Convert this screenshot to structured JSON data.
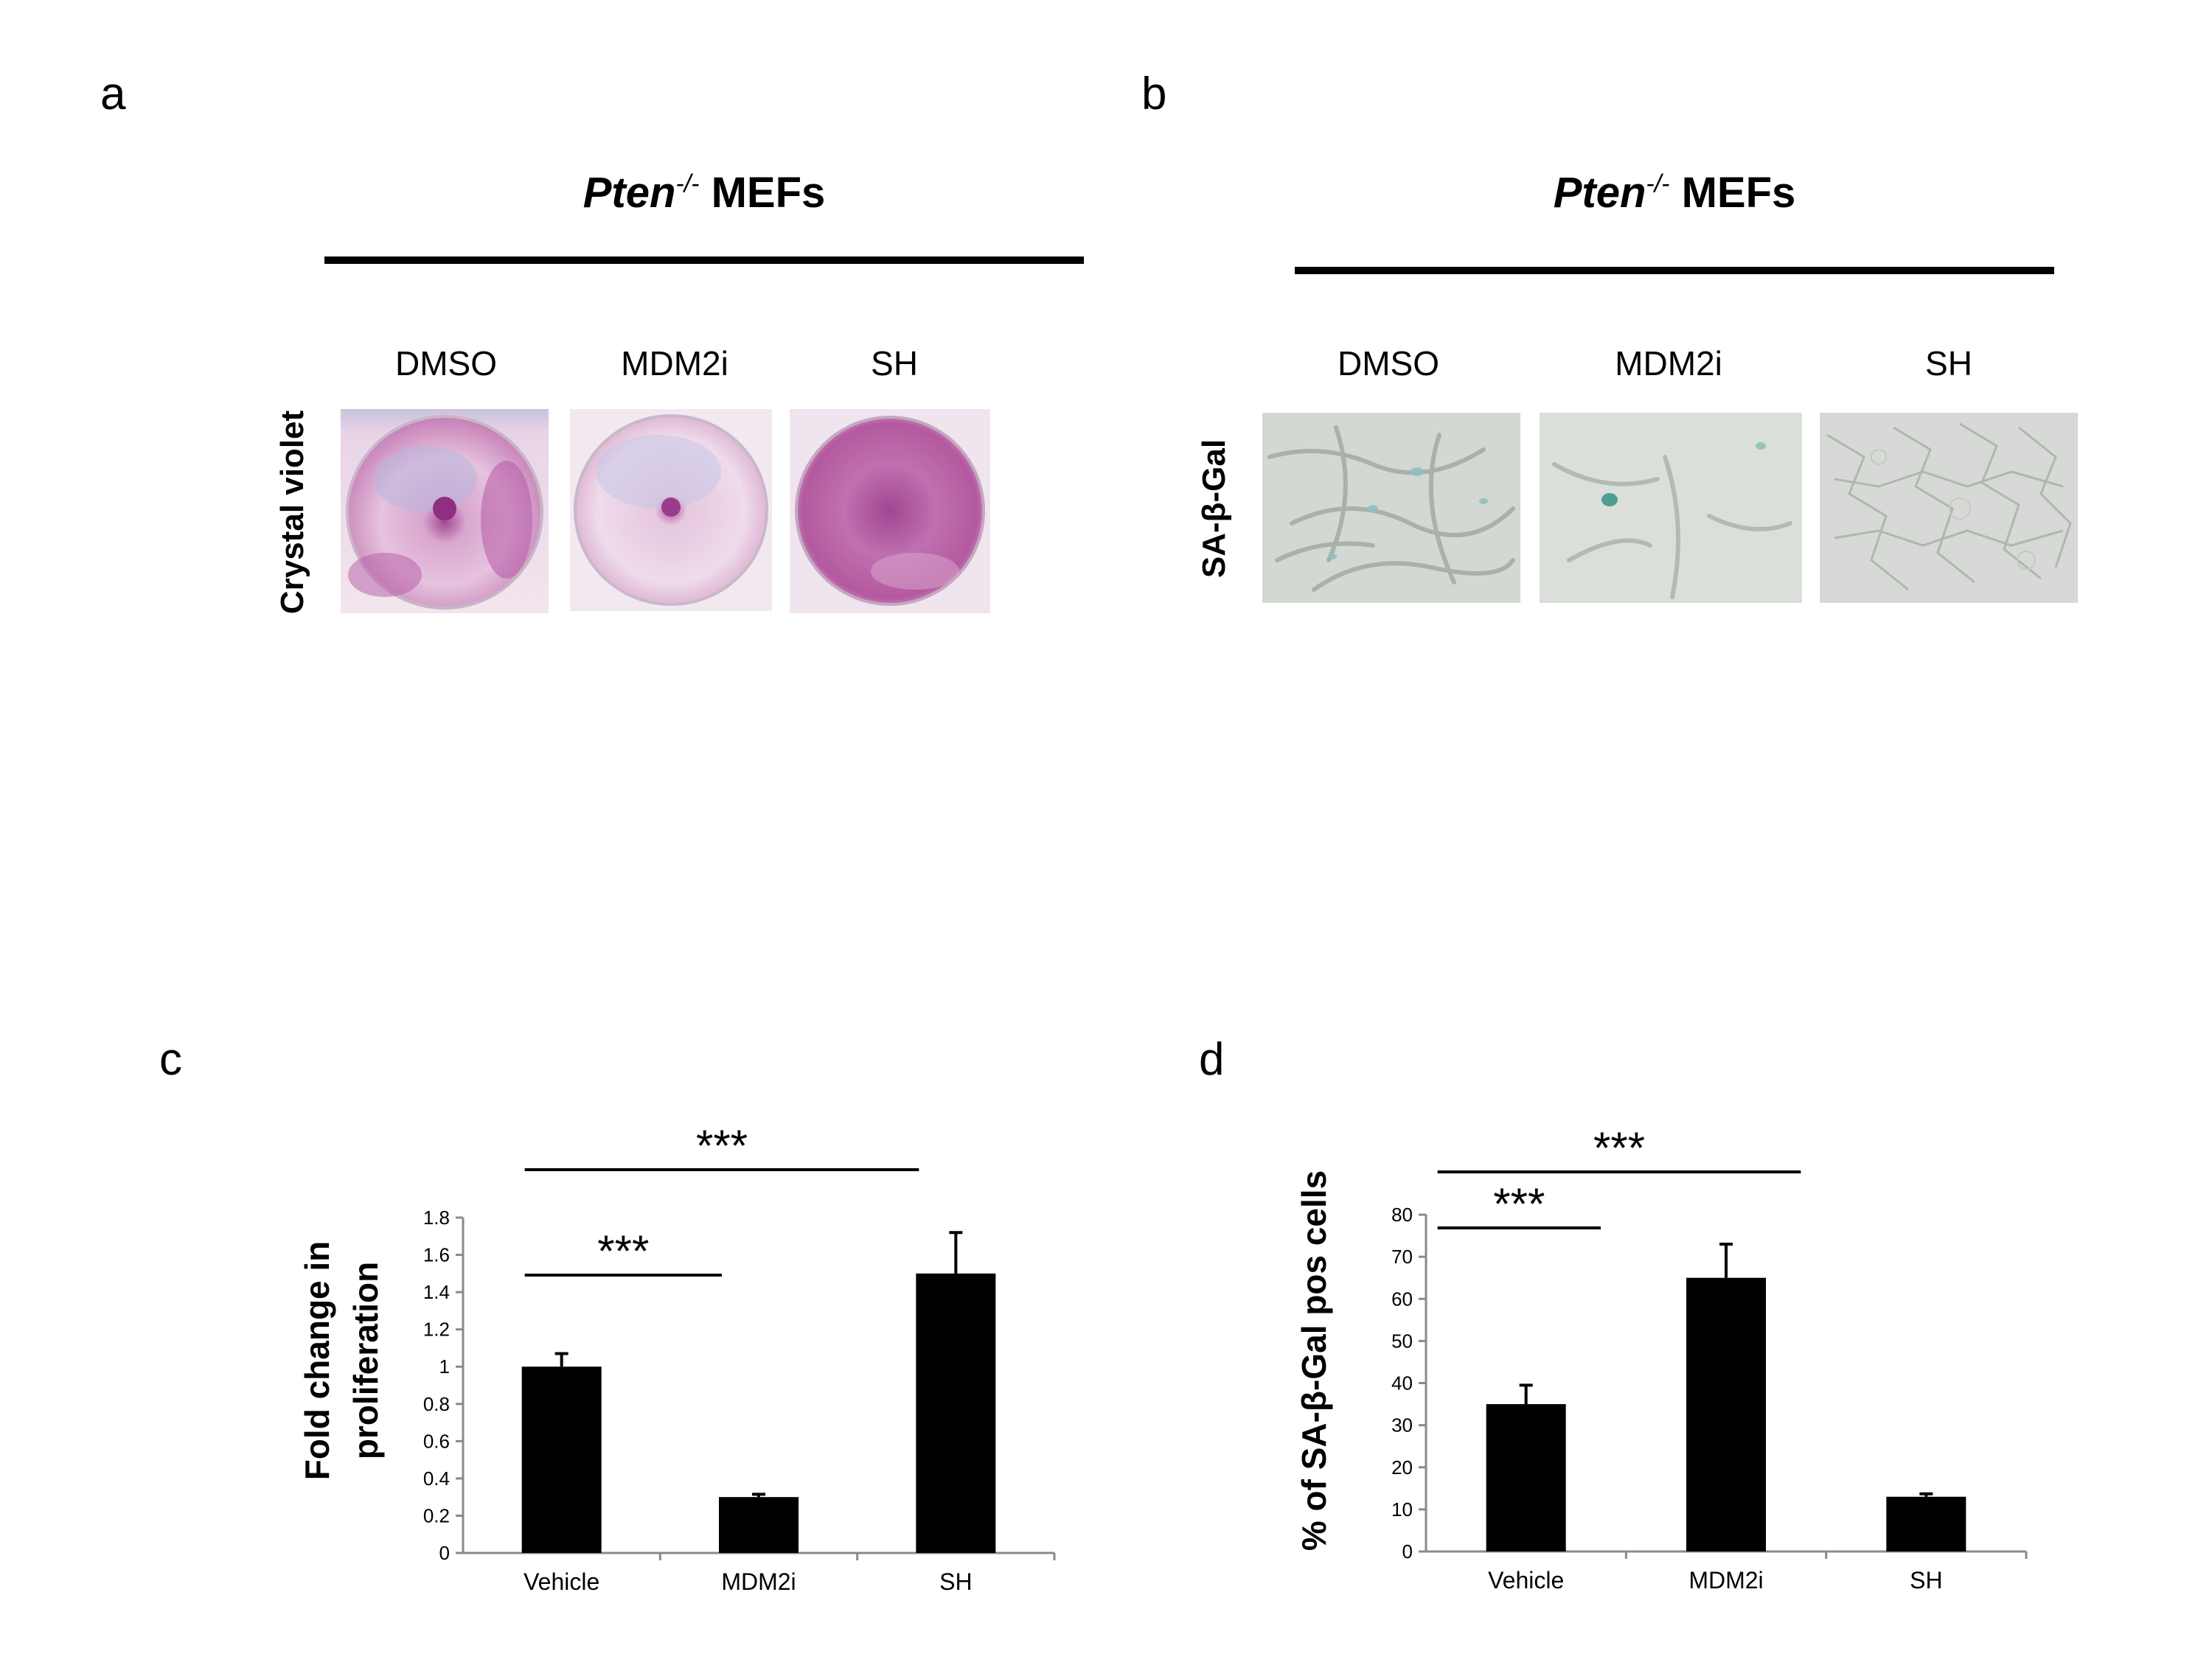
{
  "figure": {
    "panels": {
      "a": {
        "letter": "a",
        "title_gene": "Pten",
        "title_sup": "-/-",
        "title_rest": " MEFs",
        "row_label": "Crystal violet",
        "conditions": [
          "DMSO",
          "MDM2i",
          "SH"
        ]
      },
      "b": {
        "letter": "b",
        "title_gene": "Pten",
        "title_sup": "-/-",
        "title_rest": " MEFs",
        "row_label": "SA-β-Gal",
        "conditions": [
          "DMSO",
          "MDM2i",
          "SH"
        ]
      },
      "c": {
        "letter": "c"
      },
      "d": {
        "letter": "d"
      }
    }
  },
  "chart_data": [
    {
      "panel": "c",
      "type": "bar",
      "categories": [
        "Vehicle",
        "MDM2i",
        "SH"
      ],
      "values": [
        1.0,
        0.3,
        1.5
      ],
      "errors": [
        0.07,
        0.015,
        0.22
      ],
      "ylabel": "Fold change in proliferation",
      "ylabel_lines": [
        "Fold change in",
        "proliferation"
      ],
      "ylim": [
        0,
        1.8
      ],
      "yticks": [
        "0",
        "0.2",
        "0.4",
        "0.6",
        "0.8",
        "1",
        "1.2",
        "1.4",
        "1.6",
        "1.8"
      ],
      "significance": [
        {
          "from": "Vehicle",
          "to": "MDM2i",
          "label": "***"
        },
        {
          "from": "Vehicle",
          "to": "SH",
          "label": "***"
        }
      ],
      "bar_color": "#000000"
    },
    {
      "panel": "d",
      "type": "bar",
      "categories": [
        "Vehicle",
        "MDM2i",
        "SH"
      ],
      "values": [
        35,
        65,
        13
      ],
      "errors": [
        4.5,
        8,
        0.7
      ],
      "ylabel": "% of SA-β-Gal pos cells",
      "ylim": [
        0,
        80
      ],
      "yticks": [
        "0",
        "10",
        "20",
        "30",
        "40",
        "50",
        "60",
        "70",
        "80"
      ],
      "significance": [
        {
          "from": "Vehicle",
          "to": "MDM2i",
          "label": "***"
        },
        {
          "from": "Vehicle",
          "to": "SH",
          "label": "***"
        }
      ],
      "bar_color": "#000000"
    }
  ]
}
